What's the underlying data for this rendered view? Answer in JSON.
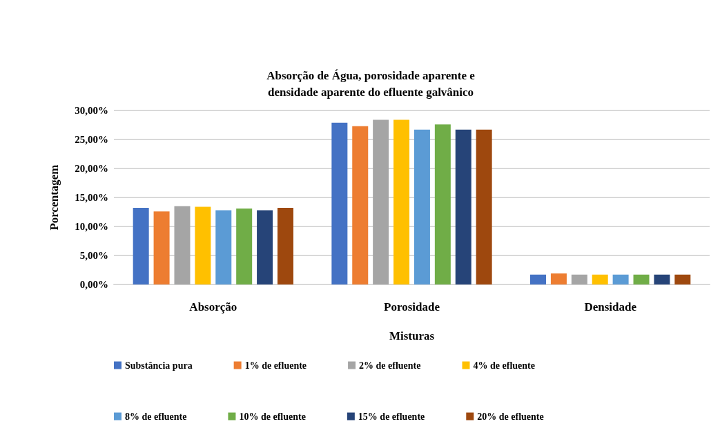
{
  "chart_data": {
    "type": "bar",
    "title": "Absorção de Água, porosidade aparente e\ndensidade aparente do efluente galvânico",
    "xlabel": "Misturas",
    "ylabel": "Porcentagem",
    "categories": [
      "Absorção",
      "Porosidade",
      "Densidade"
    ],
    "series": [
      {
        "name": "Substância pura",
        "color": "#4472c4",
        "values": [
          13.2,
          27.9,
          1.7
        ]
      },
      {
        "name": "1% de efluente",
        "color": "#ed7d31",
        "values": [
          12.6,
          27.3,
          1.9
        ]
      },
      {
        "name": "2% de efluente",
        "color": "#a5a5a5",
        "values": [
          13.5,
          28.4,
          1.7
        ]
      },
      {
        "name": "4% de efluente",
        "color": "#ffc000",
        "values": [
          13.4,
          28.4,
          1.7
        ]
      },
      {
        "name": "8% de efluente",
        "color": "#5b9bd5",
        "values": [
          12.8,
          26.7,
          1.7
        ]
      },
      {
        "name": "10% de efluente",
        "color": "#70ad47",
        "values": [
          13.1,
          27.6,
          1.7
        ]
      },
      {
        "name": "15% de efluente",
        "color": "#264478",
        "values": [
          12.8,
          26.7,
          1.7
        ]
      },
      {
        "name": "20% de efluente",
        "color": "#9e480e",
        "values": [
          13.2,
          26.7,
          1.7
        ]
      }
    ],
    "ylim": [
      0,
      30
    ],
    "yticks": [
      {
        "value": 0,
        "label": "0,00%"
      },
      {
        "value": 5,
        "label": "5,00%"
      },
      {
        "value": 10,
        "label": "10,00%"
      },
      {
        "value": 15,
        "label": "15,00%"
      },
      {
        "value": 20,
        "label": "20,00%"
      },
      {
        "value": 25,
        "label": "25,00%"
      },
      {
        "value": 30,
        "label": "30,00%"
      }
    ],
    "grid": "y",
    "legend": "bottom"
  }
}
